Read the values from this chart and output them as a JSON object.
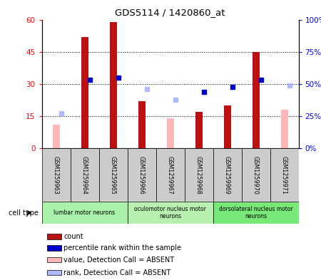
{
  "title": "GDS5114 / 1420860_at",
  "samples": [
    "GSM1259963",
    "GSM1259964",
    "GSM1259965",
    "GSM1259966",
    "GSM1259967",
    "GSM1259968",
    "GSM1259969",
    "GSM1259970",
    "GSM1259971"
  ],
  "count": [
    0,
    52,
    59,
    22,
    0,
    17,
    20,
    45,
    0
  ],
  "count_absent": [
    11,
    0,
    0,
    0,
    14,
    0,
    0,
    0,
    18
  ],
  "rank_pct": [
    0,
    53,
    55,
    0,
    0,
    44,
    48,
    53,
    0
  ],
  "rank_absent_pct": [
    27,
    0,
    0,
    46,
    38,
    0,
    0,
    0,
    49
  ],
  "ylim_left": [
    0,
    60
  ],
  "yticks_left": [
    0,
    15,
    30,
    45,
    60
  ],
  "cell_types": [
    {
      "label": "lumbar motor neurons",
      "start": 0,
      "end": 3,
      "color": "#aaf0aa"
    },
    {
      "label": "oculomotor nucleus motor\nneurons",
      "start": 3,
      "end": 6,
      "color": "#b8f0b0"
    },
    {
      "label": "dorsolateral nucleus motor\nneurons",
      "start": 6,
      "end": 9,
      "color": "#78e878"
    }
  ],
  "bar_color_present": "#bb1111",
  "bar_color_absent": "#ffb8b8",
  "rank_color_present": "#0000cc",
  "rank_color_absent": "#b0b8ff",
  "bg_color": "#cccccc",
  "bar_width": 0.25,
  "legend_items": [
    {
      "color": "#bb1111",
      "label": "count"
    },
    {
      "color": "#0000cc",
      "label": "percentile rank within the sample"
    },
    {
      "color": "#ffb8b8",
      "label": "value, Detection Call = ABSENT"
    },
    {
      "color": "#b0b8ff",
      "label": "rank, Detection Call = ABSENT"
    }
  ]
}
